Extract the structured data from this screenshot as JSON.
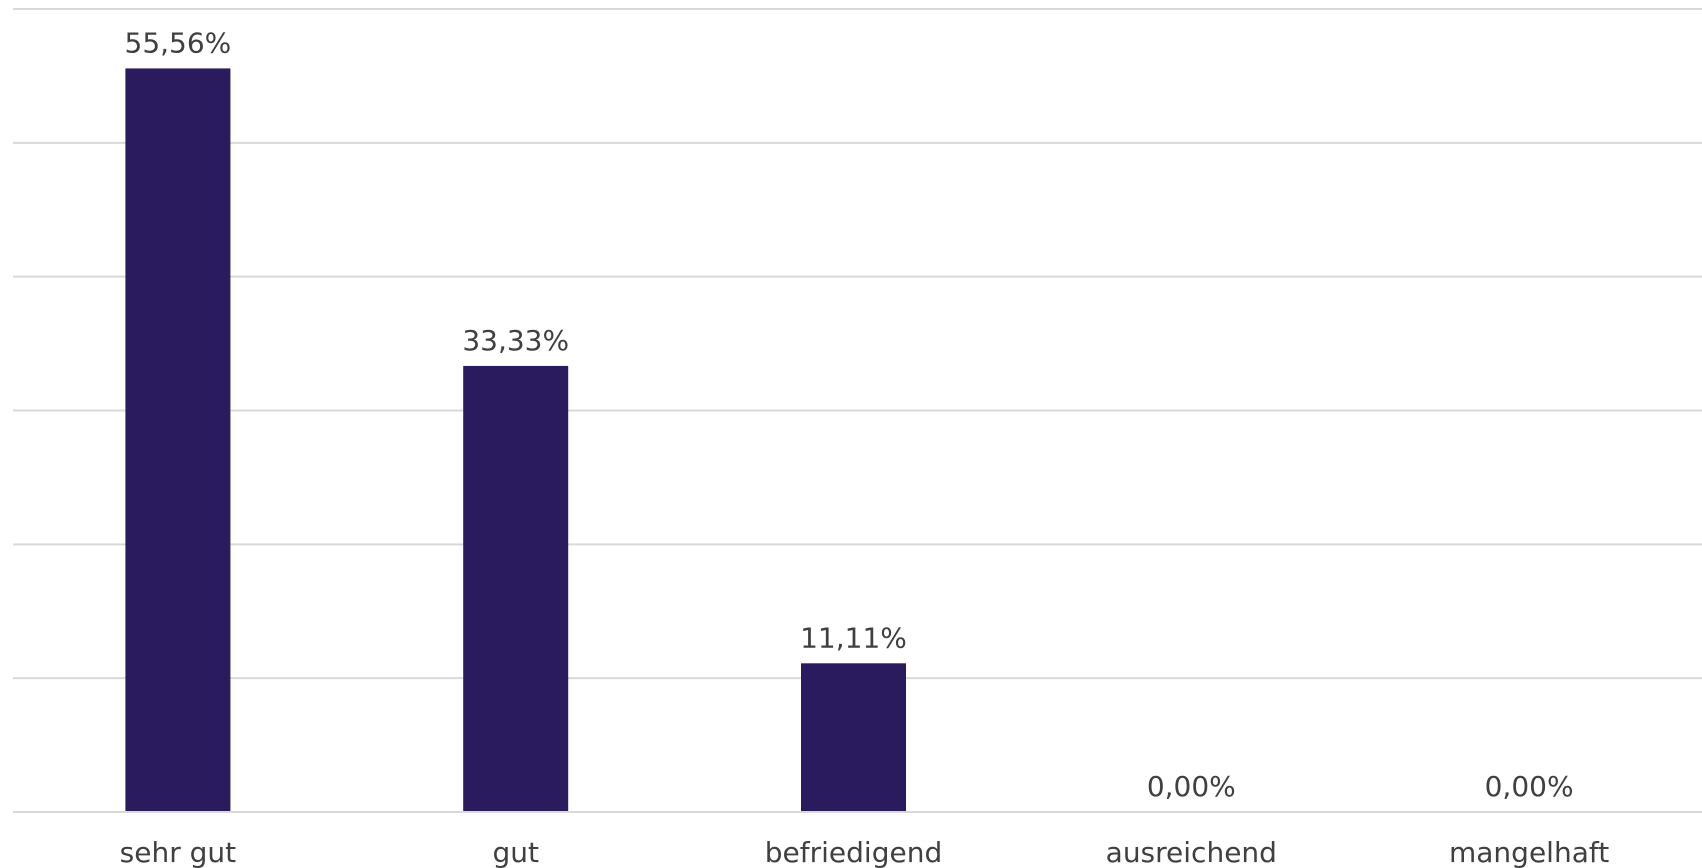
{
  "chart_data": {
    "type": "bar",
    "categories": [
      "sehr gut",
      "gut",
      "befriedigend",
      "ausreichend",
      "mangelhaft"
    ],
    "values": [
      55.56,
      33.33,
      11.11,
      0.0,
      0.0
    ],
    "data_labels": [
      "55,56%",
      "33,33%",
      "11,11%",
      "0,00%",
      "0,00%"
    ],
    "title": "",
    "xlabel": "",
    "ylabel": "",
    "ylim": [
      0,
      60
    ],
    "grid": true,
    "legend": "none",
    "bar_color": "#2a1a5e",
    "gridline_color": "#d9d9d9",
    "text_color": "#404040"
  }
}
